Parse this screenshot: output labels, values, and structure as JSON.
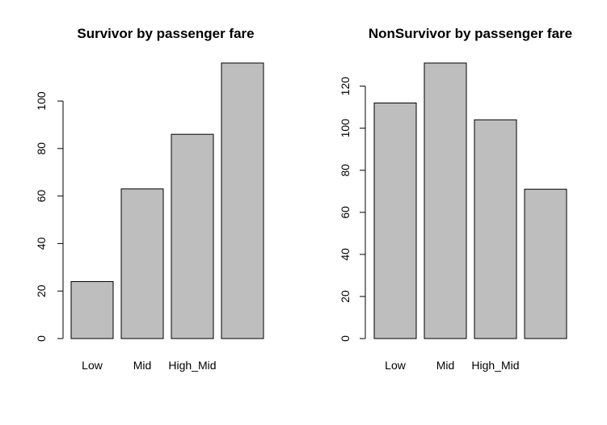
{
  "chart_data": [
    {
      "type": "bar",
      "title": "Survivor by passenger fare",
      "categories": [
        "Low",
        "Mid",
        "High_Mid",
        ""
      ],
      "values": [
        24,
        63,
        86,
        116
      ],
      "xlabel": "",
      "ylabel": "",
      "ylim": [
        0,
        116
      ],
      "yticks": [
        0,
        20,
        40,
        60,
        80,
        100
      ],
      "bar_color": "#bebebe",
      "grid": false
    },
    {
      "type": "bar",
      "title": "NonSurvivor by passenger fare",
      "categories": [
        "Low",
        "Mid",
        "High_Mid",
        ""
      ],
      "values": [
        112,
        131,
        104,
        71
      ],
      "xlabel": "",
      "ylabel": "",
      "ylim": [
        0,
        131
      ],
      "yticks": [
        0,
        20,
        40,
        60,
        80,
        100,
        120
      ],
      "bar_color": "#bebebe",
      "grid": false
    }
  ]
}
